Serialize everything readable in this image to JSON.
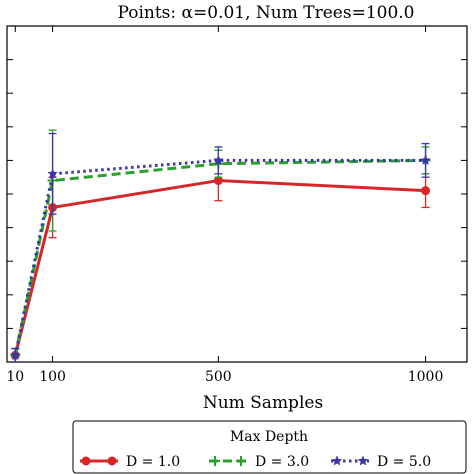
{
  "chart_data": {
    "type": "line",
    "title": "Points: α=0.01, Num Trees=100.0",
    "xlabel": "Num Samples",
    "ylabel": "",
    "x_ticks": [
      10,
      100,
      500,
      1000
    ],
    "x_tick_labels": [
      "10",
      "100",
      "500",
      "1000"
    ],
    "xlim": [
      -10,
      1100
    ],
    "ylim": [
      0,
      1
    ],
    "y_tick_count": 11,
    "y_tick_labels_visible": false,
    "grid": false,
    "legend": {
      "title": "Max Depth",
      "placement": "bottom-center"
    },
    "series": [
      {
        "name": "D = 1.0",
        "color": "#d62728",
        "style": "solid",
        "marker": "circle",
        "x": [
          10,
          100,
          500,
          1000
        ],
        "y": [
          0.02,
          0.46,
          0.54,
          0.51
        ],
        "err": [
          0.02,
          0.09,
          0.06,
          0.05
        ]
      },
      {
        "name": "D = 3.0",
        "color": "#2ca02c",
        "style": "dashed",
        "marker": "plus",
        "x": [
          10,
          100,
          500,
          1000
        ],
        "y": [
          0.02,
          0.54,
          0.59,
          0.6
        ],
        "err": [
          0.02,
          0.15,
          0.04,
          0.04
        ]
      },
      {
        "name": "D = 5.0",
        "color": "#3a36a8",
        "style": "dotted",
        "marker": "star",
        "x": [
          10,
          100,
          500,
          1000
        ],
        "y": [
          0.02,
          0.56,
          0.6,
          0.6
        ],
        "err": [
          0.02,
          0.12,
          0.04,
          0.05
        ]
      }
    ]
  }
}
